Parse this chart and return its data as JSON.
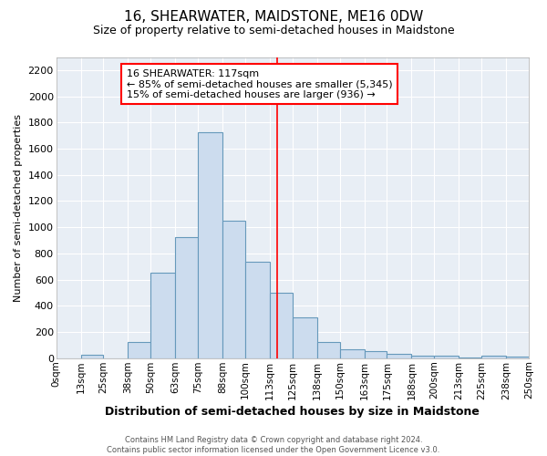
{
  "title": "16, SHEARWATER, MAIDSTONE, ME16 0DW",
  "subtitle": "Size of property relative to semi-detached houses in Maidstone",
  "xlabel": "Distribution of semi-detached houses by size in Maidstone",
  "ylabel": "Number of semi-detached properties",
  "bar_color": "#ccdcee",
  "bar_edge_color": "#6699bb",
  "bg_color": "#e8eef5",
  "grid_color": "#ffffff",
  "red_line_x": 117,
  "annotation_title": "16 SHEARWATER: 117sqm",
  "annotation_line1": "← 85% of semi-detached houses are smaller (5,345)",
  "annotation_line2": "15% of semi-detached houses are larger (936) →",
  "footer_line1": "Contains HM Land Registry data © Crown copyright and database right 2024.",
  "footer_line2": "Contains public sector information licensed under the Open Government Licence v3.0.",
  "bins": [
    0,
    13,
    25,
    38,
    50,
    63,
    75,
    88,
    100,
    113,
    125,
    138,
    150,
    163,
    175,
    188,
    200,
    213,
    225,
    238,
    250
  ],
  "counts": [
    0,
    25,
    0,
    125,
    650,
    925,
    1725,
    1050,
    735,
    500,
    310,
    125,
    70,
    50,
    35,
    20,
    15,
    5,
    15,
    10
  ],
  "ylim": [
    0,
    2300
  ],
  "yticks": [
    0,
    200,
    400,
    600,
    800,
    1000,
    1200,
    1400,
    1600,
    1800,
    2000,
    2200
  ],
  "tick_labels": [
    "0sqm",
    "13sqm",
    "25sqm",
    "38sqm",
    "50sqm",
    "63sqm",
    "75sqm",
    "88sqm",
    "100sqm",
    "113sqm",
    "125sqm",
    "138sqm",
    "150sqm",
    "163sqm",
    "175sqm",
    "188sqm",
    "200sqm",
    "213sqm",
    "225sqm",
    "238sqm",
    "250sqm"
  ]
}
